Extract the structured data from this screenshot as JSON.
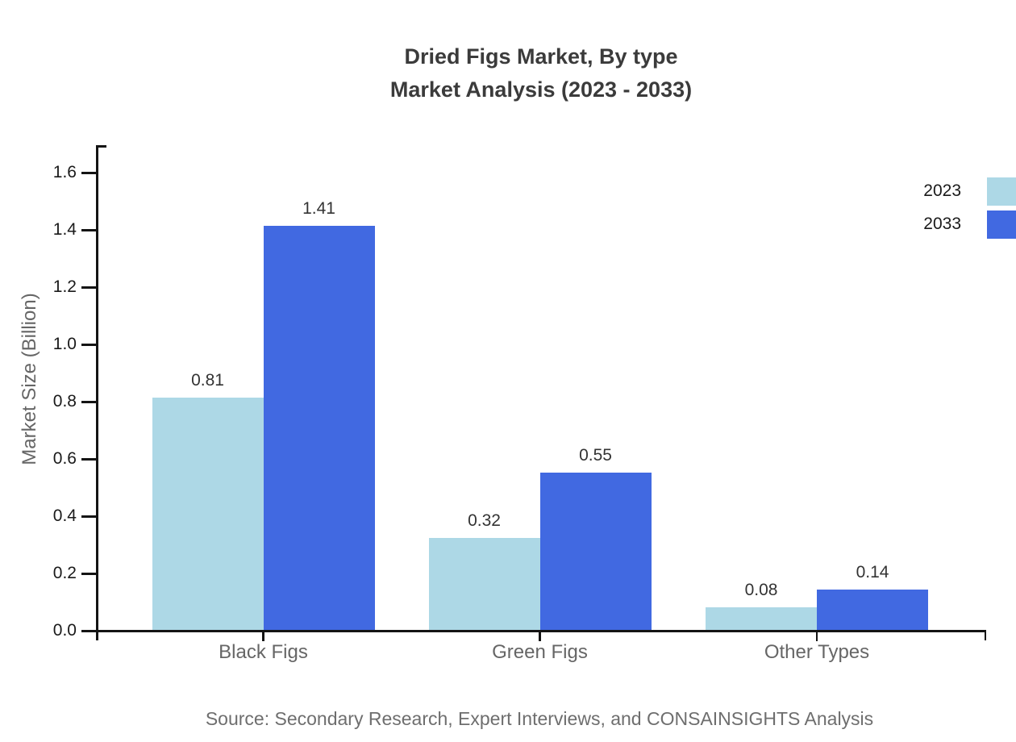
{
  "title": {
    "line1": "Dried Figs Market, By type",
    "line2": "Market Analysis (2023 - 2033)"
  },
  "chart_data": {
    "type": "bar",
    "categories": [
      "Black Figs",
      "Green Figs",
      "Other Types"
    ],
    "series": [
      {
        "name": "2023",
        "color": "#add8e6",
        "values": [
          0.81,
          0.32,
          0.08
        ],
        "labels": [
          "0.81",
          "0.32",
          "0.08"
        ]
      },
      {
        "name": "2033",
        "color": "#4169e1",
        "values": [
          1.41,
          0.55,
          0.14
        ],
        "labels": [
          "1.41",
          "0.55",
          "0.14"
        ]
      }
    ],
    "xlabel": "",
    "ylabel": "Market Size (Billion)",
    "ylim": [
      0,
      1.6
    ],
    "yticks": [
      "0.0",
      "0.2",
      "0.4",
      "0.6",
      "0.8",
      "1.0",
      "1.2",
      "1.4",
      "1.6"
    ],
    "grid": false,
    "legend_position": "top-right",
    "value_labels": true
  },
  "source": "Source: Secondary Research, Expert Interviews, and CONSAINSIGHTS Analysis"
}
